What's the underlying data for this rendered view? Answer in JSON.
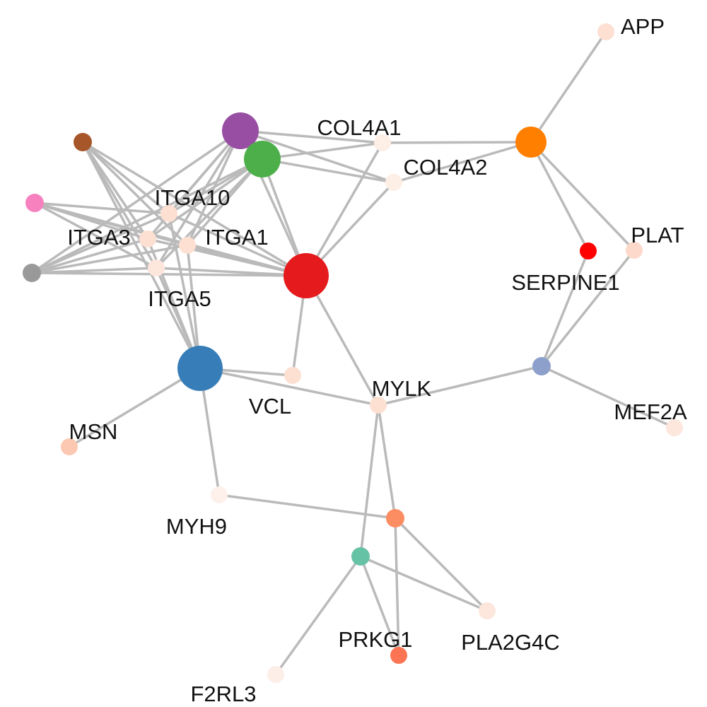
{
  "graph": {
    "nodes": [
      {
        "id": "APP",
        "label": "APP",
        "color": "#fde0d2"
      },
      {
        "id": "COL4A1",
        "label": "COL4A1",
        "color": "#fdeee6"
      },
      {
        "id": "COL4A2",
        "label": "COL4A2",
        "color": "#fdeee6"
      },
      {
        "id": "ITGA10",
        "label": "ITGA10",
        "color": "#fde0d2"
      },
      {
        "id": "ITGA3",
        "label": "ITGA3",
        "color": "#fde0d2"
      },
      {
        "id": "ITGA1",
        "label": "ITGA1",
        "color": "#fde0d2"
      },
      {
        "id": "ITGA5",
        "label": "ITGA5",
        "color": "#fde6dc"
      },
      {
        "id": "PLAT",
        "label": "PLAT",
        "color": "#fcd9ca"
      },
      {
        "id": "SERPINE1",
        "label": "SERPINE1",
        "color": "#ff0000"
      },
      {
        "id": "VCL",
        "label": "VCL",
        "color": "#fde0d2"
      },
      {
        "id": "MYLK",
        "label": "MYLK",
        "color": "#fde0d2"
      },
      {
        "id": "MEF2A",
        "label": "MEF2A",
        "color": "#fde6dc"
      },
      {
        "id": "MSN",
        "label": "MSN",
        "color": "#fcc8b2"
      },
      {
        "id": "MYH9",
        "label": "MYH9",
        "color": "#fef0ea"
      },
      {
        "id": "PRKG1",
        "label": "PRKG1",
        "color": "#fb7555"
      },
      {
        "id": "PLA2G4C",
        "label": "PLA2G4C",
        "color": "#fde6dc"
      },
      {
        "id": "F2RL3",
        "label": "F2RL3",
        "color": "#fdeee8"
      },
      {
        "id": "hub_red",
        "label": "",
        "color": "#e41a1c"
      },
      {
        "id": "hub_blue",
        "label": "",
        "color": "#377eb8"
      },
      {
        "id": "hub_purple",
        "label": "",
        "color": "#984ea3"
      },
      {
        "id": "hub_green",
        "label": "",
        "color": "#4daf4a"
      },
      {
        "id": "hub_orange",
        "label": "",
        "color": "#ff7f00"
      },
      {
        "id": "hub_brown",
        "label": "",
        "color": "#a65628"
      },
      {
        "id": "hub_pink",
        "label": "",
        "color": "#f781bf"
      },
      {
        "id": "hub_grey",
        "label": "",
        "color": "#999999"
      },
      {
        "id": "hub_lavender",
        "label": "",
        "color": "#8da0cb"
      },
      {
        "id": "hub_salmon",
        "label": "",
        "color": "#fc8d62"
      },
      {
        "id": "hub_teal",
        "label": "",
        "color": "#66c2a5"
      }
    ],
    "edges": [
      [
        "APP",
        "hub_orange"
      ],
      [
        "hub_orange",
        "COL4A1"
      ],
      [
        "hub_orange",
        "COL4A2"
      ],
      [
        "hub_orange",
        "SERPINE1"
      ],
      [
        "hub_orange",
        "PLAT"
      ],
      [
        "SERPINE1",
        "hub_lavender"
      ],
      [
        "PLAT",
        "hub_lavender"
      ],
      [
        "hub_lavender",
        "MEF2A"
      ],
      [
        "hub_lavender",
        "MYLK"
      ],
      [
        "hub_purple",
        "COL4A1"
      ],
      [
        "hub_purple",
        "COL4A2"
      ],
      [
        "hub_green",
        "COL4A1"
      ],
      [
        "hub_green",
        "COL4A2"
      ],
      [
        "COL4A1",
        "hub_red"
      ],
      [
        "COL4A2",
        "hub_red"
      ],
      [
        "hub_purple",
        "hub_red"
      ],
      [
        "hub_green",
        "hub_red"
      ],
      [
        "hub_red",
        "VCL"
      ],
      [
        "hub_red",
        "MYLK"
      ],
      [
        "hub_red",
        "ITGA10"
      ],
      [
        "hub_red",
        "ITGA3"
      ],
      [
        "hub_red",
        "ITGA1"
      ],
      [
        "hub_red",
        "ITGA5"
      ],
      [
        "hub_red",
        "hub_grey"
      ],
      [
        "hub_red",
        "hub_pink"
      ],
      [
        "hub_red",
        "hub_brown"
      ],
      [
        "hub_purple",
        "ITGA10"
      ],
      [
        "hub_purple",
        "ITGA3"
      ],
      [
        "hub_purple",
        "ITGA1"
      ],
      [
        "hub_purple",
        "ITGA5"
      ],
      [
        "hub_purple",
        "hub_grey"
      ],
      [
        "hub_green",
        "ITGA10"
      ],
      [
        "hub_green",
        "ITGA3"
      ],
      [
        "hub_green",
        "ITGA1"
      ],
      [
        "hub_green",
        "ITGA5"
      ],
      [
        "hub_green",
        "hub_grey"
      ],
      [
        "hub_brown",
        "ITGA10"
      ],
      [
        "hub_brown",
        "ITGA3"
      ],
      [
        "hub_brown",
        "ITGA1"
      ],
      [
        "hub_brown",
        "ITGA5"
      ],
      [
        "hub_brown",
        "hub_blue"
      ],
      [
        "hub_pink",
        "ITGA10"
      ],
      [
        "hub_pink",
        "ITGA3"
      ],
      [
        "hub_pink",
        "ITGA1"
      ],
      [
        "hub_pink",
        "ITGA5"
      ],
      [
        "hub_grey",
        "ITGA10"
      ],
      [
        "hub_grey",
        "ITGA3"
      ],
      [
        "hub_grey",
        "ITGA1"
      ],
      [
        "hub_grey",
        "ITGA5"
      ],
      [
        "ITGA10",
        "hub_blue"
      ],
      [
        "ITGA3",
        "hub_blue"
      ],
      [
        "ITGA1",
        "hub_blue"
      ],
      [
        "ITGA5",
        "hub_blue"
      ],
      [
        "hub_blue",
        "VCL"
      ],
      [
        "hub_blue",
        "MYLK"
      ],
      [
        "hub_blue",
        "MSN"
      ],
      [
        "hub_blue",
        "MYH9"
      ],
      [
        "MYH9",
        "hub_salmon"
      ],
      [
        "MYLK",
        "hub_salmon"
      ],
      [
        "MYLK",
        "hub_teal"
      ],
      [
        "hub_salmon",
        "PRKG1"
      ],
      [
        "hub_salmon",
        "PLA2G4C"
      ],
      [
        "hub_teal",
        "PRKG1"
      ],
      [
        "hub_teal",
        "PLA2G4C"
      ],
      [
        "hub_teal",
        "F2RL3"
      ]
    ]
  }
}
